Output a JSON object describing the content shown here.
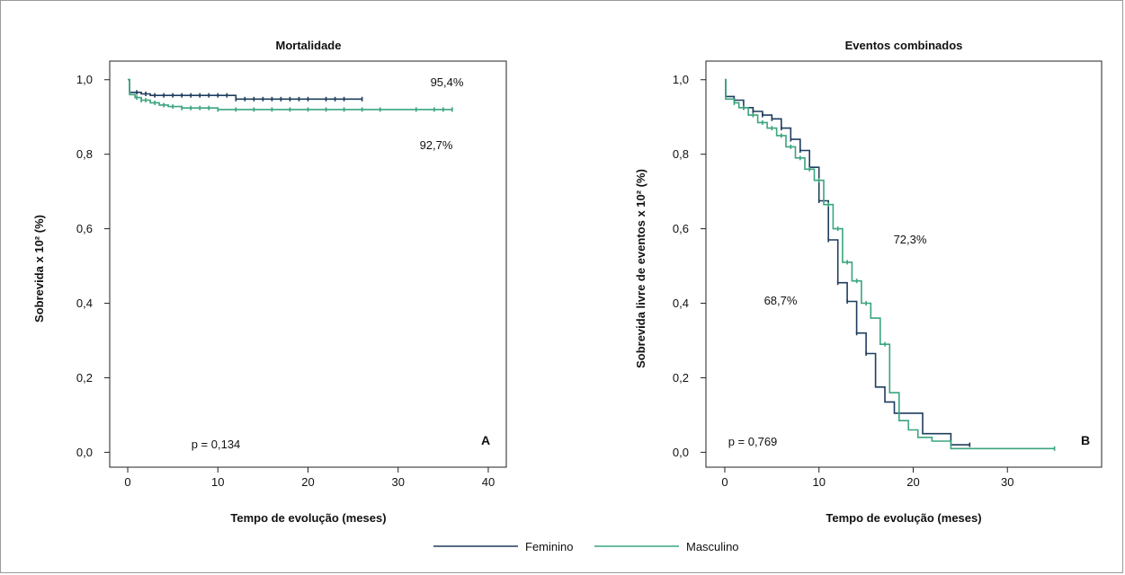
{
  "colors": {
    "feminino": "#1f3d5e",
    "masculino": "#3aa57e"
  },
  "legend": {
    "feminino": "Feminino",
    "masculino": "Masculino"
  },
  "chart_data": [
    {
      "type": "line",
      "title": "Mortalidade",
      "xlabel": "Tempo de evolução (meses)",
      "ylabel": "Sobrevida x 10² (%)",
      "xlim": [
        -2,
        42
      ],
      "ylim": [
        -0.04,
        1.05
      ],
      "xticks": [
        0,
        10,
        20,
        30,
        40
      ],
      "yticks": [
        0.0,
        0.2,
        0.4,
        0.6,
        0.8,
        1.0
      ],
      "yticklabels": [
        "0,0",
        "0,2",
        "0,4",
        "0,6",
        "0,8",
        "1,0"
      ],
      "annotations": {
        "top": "95,4%",
        "bottom": "92,7%",
        "p": "p = 0,134",
        "letter": "A"
      },
      "series": [
        {
          "name": "Feminino",
          "color": "#1f3d5e",
          "steps": [
            [
              0,
              1.0
            ],
            [
              0.2,
              0.966
            ],
            [
              1.5,
              0.962
            ],
            [
              2.5,
              0.958
            ],
            [
              12,
              0.948
            ],
            [
              26,
              0.948
            ]
          ],
          "censor": [
            1,
            2,
            3,
            4,
            5,
            6,
            7,
            8,
            9,
            10,
            11,
            12,
            13,
            14,
            15,
            16,
            17,
            18,
            19,
            20,
            22,
            23,
            24,
            26
          ]
        },
        {
          "name": "Masculino",
          "color": "#3aa57e",
          "steps": [
            [
              0,
              1.0
            ],
            [
              0.2,
              0.96
            ],
            [
              0.8,
              0.952
            ],
            [
              1.5,
              0.945
            ],
            [
              2.5,
              0.938
            ],
            [
              3.5,
              0.932
            ],
            [
              4.5,
              0.928
            ],
            [
              6,
              0.924
            ],
            [
              10,
              0.92
            ],
            [
              36,
              0.92
            ]
          ],
          "censor": [
            1,
            1.5,
            2,
            3,
            4,
            5,
            6,
            7,
            8,
            9,
            10,
            12,
            14,
            16,
            18,
            20,
            22,
            24,
            26,
            28,
            32,
            34,
            35,
            36
          ]
        }
      ]
    },
    {
      "type": "line",
      "title": "Eventos combinados",
      "xlabel": "Tempo de evolução (meses)",
      "ylabel": "Sobrevida livre de eventos x 10² (%)",
      "xlim": [
        -2,
        40
      ],
      "ylim": [
        -0.04,
        1.05
      ],
      "xticks": [
        0,
        10,
        20,
        30
      ],
      "yticks": [
        0.0,
        0.2,
        0.4,
        0.6,
        0.8,
        1.0
      ],
      "yticklabels": [
        "0,0",
        "0,2",
        "0,4",
        "0,6",
        "0,8",
        "1,0"
      ],
      "annotations": {
        "top": "72,3%",
        "bottom": "68,7%",
        "p": "p = 0,769",
        "letter": "B"
      },
      "series": [
        {
          "name": "Feminino",
          "color": "#1f3d5e",
          "steps": [
            [
              0,
              1.0
            ],
            [
              0.1,
              0.955
            ],
            [
              1,
              0.945
            ],
            [
              2,
              0.925
            ],
            [
              3,
              0.915
            ],
            [
              4,
              0.905
            ],
            [
              5,
              0.895
            ],
            [
              6,
              0.87
            ],
            [
              7,
              0.84
            ],
            [
              8,
              0.81
            ],
            [
              9,
              0.765
            ],
            [
              10,
              0.675
            ],
            [
              11,
              0.57
            ],
            [
              12,
              0.455
            ],
            [
              13,
              0.405
            ],
            [
              14,
              0.32
            ],
            [
              15,
              0.265
            ],
            [
              16,
              0.175
            ],
            [
              17,
              0.135
            ],
            [
              18,
              0.105
            ],
            [
              21,
              0.05
            ],
            [
              24,
              0.02
            ],
            [
              26,
              0.02
            ]
          ],
          "censor": [
            1,
            2,
            3,
            4,
            5,
            6,
            7,
            8,
            9,
            10,
            11,
            12,
            13,
            14,
            15,
            26
          ]
        },
        {
          "name": "Masculino",
          "color": "#3aa57e",
          "steps": [
            [
              0,
              1.0
            ],
            [
              0.1,
              0.948
            ],
            [
              1,
              0.938
            ],
            [
              1.5,
              0.925
            ],
            [
              2.5,
              0.905
            ],
            [
              3.5,
              0.885
            ],
            [
              4.5,
              0.87
            ],
            [
              5.5,
              0.85
            ],
            [
              6.5,
              0.82
            ],
            [
              7.5,
              0.79
            ],
            [
              8.5,
              0.76
            ],
            [
              9.5,
              0.73
            ],
            [
              10.5,
              0.665
            ],
            [
              11.5,
              0.6
            ],
            [
              12.5,
              0.51
            ],
            [
              13.5,
              0.46
            ],
            [
              14.5,
              0.4
            ],
            [
              15.5,
              0.36
            ],
            [
              16.5,
              0.29
            ],
            [
              17.5,
              0.16
            ],
            [
              18.5,
              0.085
            ],
            [
              19.5,
              0.06
            ],
            [
              20.5,
              0.04
            ],
            [
              22,
              0.03
            ],
            [
              24,
              0.01
            ],
            [
              35,
              0.01
            ]
          ],
          "censor": [
            1,
            2,
            3,
            4,
            5,
            6,
            7,
            8,
            9,
            10,
            11,
            12,
            13,
            14,
            15,
            17,
            35
          ]
        }
      ]
    }
  ]
}
